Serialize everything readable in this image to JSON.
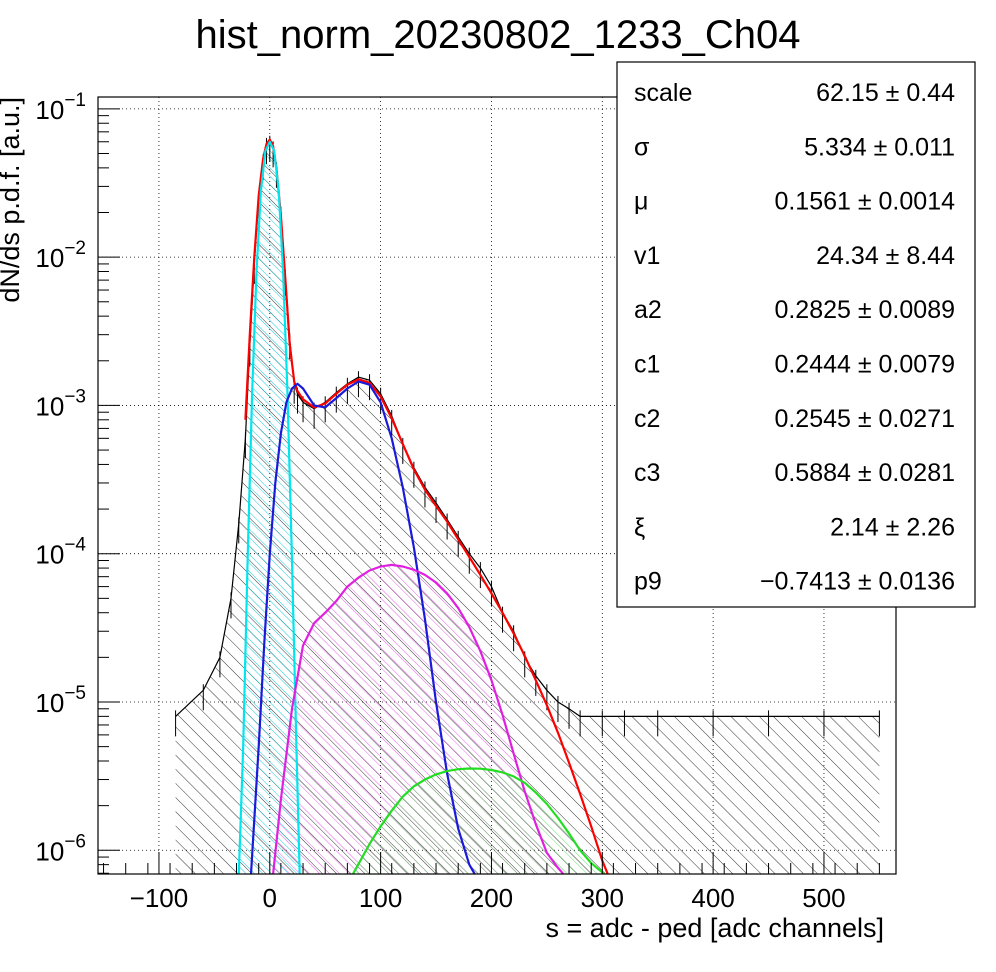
{
  "chart_data": {
    "type": "line",
    "title": "hist_norm_20230802_1233_Ch04",
    "xlabel": "s = adc - ped [adc channels]",
    "ylabel": "dN/ds p.d.f. [a.u.]",
    "xlim": [
      -155,
      565
    ],
    "ylim_log10": [
      -6.16,
      -0.92
    ],
    "y_scale": "log",
    "grid": true,
    "x_ticks": [
      -100,
      0,
      100,
      200,
      300,
      400,
      500
    ],
    "x_tick_labels": [
      "−100",
      "0",
      "100",
      "200",
      "300",
      "400",
      "500"
    ],
    "y_ticks": [
      {
        "mant": "10",
        "exp": "−1",
        "log": -1
      },
      {
        "mant": "10",
        "exp": "−2",
        "log": -2
      },
      {
        "mant": "10",
        "exp": "−3",
        "log": -3
      },
      {
        "mant": "10",
        "exp": "−4",
        "log": -4
      },
      {
        "mant": "10",
        "exp": "−5",
        "log": -5
      },
      {
        "mant": "10",
        "exp": "−6",
        "log": -6
      }
    ],
    "series": [
      {
        "color": "#000000",
        "role": "histogram",
        "x": [
          -85,
          -60,
          -45,
          -35,
          -28,
          -22,
          -18,
          -14,
          -10,
          -6,
          -3,
          0,
          3,
          6,
          10,
          14,
          18,
          22,
          25,
          30,
          40,
          50,
          60,
          70,
          80,
          90,
          100,
          110,
          120,
          130,
          140,
          150,
          160,
          170,
          180,
          190,
          200,
          210,
          220,
          230,
          240,
          250,
          260,
          270,
          280,
          300,
          320,
          350,
          400,
          450,
          500,
          550
        ],
        "y": [
          8e-06,
          1.2e-05,
          2e-05,
          5e-05,
          0.00016,
          0.0006,
          0.0025,
          0.009,
          0.025,
          0.045,
          0.058,
          0.06,
          0.055,
          0.04,
          0.02,
          0.0075,
          0.0028,
          0.0014,
          0.0012,
          0.00105,
          0.00095,
          0.00105,
          0.00122,
          0.0014,
          0.00155,
          0.00148,
          0.0012,
          0.00085,
          0.00055,
          0.00038,
          0.00028,
          0.00022,
          0.00017,
          0.00013,
          0.0001,
          8e-05,
          6e-05,
          4e-05,
          3e-05,
          2e-05,
          1.5e-05,
          1.2e-05,
          1e-05,
          9e-06,
          8e-06,
          8e-06,
          8e-06,
          8e-06,
          8e-06,
          8e-06,
          8e-06,
          8e-06
        ]
      },
      {
        "color": "#ff0000",
        "role": "total fit",
        "x": [
          -22,
          -18,
          -14,
          -10,
          -6,
          -3,
          0,
          3,
          6,
          10,
          14,
          18,
          22,
          25,
          30,
          40,
          50,
          60,
          70,
          80,
          90,
          100,
          110,
          120,
          130,
          140,
          150,
          160,
          170,
          180,
          190,
          200,
          210,
          220,
          230,
          240,
          250,
          260,
          270,
          280,
          290,
          300,
          305
        ],
        "y": [
          0.0008,
          0.003,
          0.01,
          0.026,
          0.046,
          0.058,
          0.062,
          0.056,
          0.04,
          0.019,
          0.0072,
          0.0026,
          0.00145,
          0.00125,
          0.0011,
          0.00097,
          0.00103,
          0.0012,
          0.00138,
          0.0015,
          0.00142,
          0.00115,
          0.00082,
          0.00055,
          0.00037,
          0.00027,
          0.00021,
          0.000165,
          0.000125,
          9.5e-05,
          7.2e-05,
          5.4e-05,
          4e-05,
          2.9e-05,
          2.05e-05,
          1.4e-05,
          9.5e-06,
          6.2e-06,
          3.9e-06,
          2.4e-06,
          1.45e-06,
          8.5e-07,
          6.9e-07
        ]
      },
      {
        "color": "#00e5ee",
        "role": "pedestal component",
        "x": [
          -28,
          -24,
          -20,
          -16,
          -12,
          -8,
          -4,
          0,
          4,
          8,
          12,
          16,
          20,
          24,
          27
        ],
        "y": [
          6.9e-07,
          5e-06,
          9e-05,
          0.0012,
          0.008,
          0.028,
          0.052,
          0.06,
          0.052,
          0.028,
          0.008,
          0.0012,
          9e-05,
          5e-06,
          6.9e-07
        ]
      },
      {
        "color": "#1a1adb",
        "role": "1 p.e. component",
        "x": [
          -17,
          -10,
          -5,
          0,
          5,
          10,
          15,
          20,
          25,
          30,
          40,
          50,
          60,
          70,
          80,
          90,
          100,
          110,
          120,
          130,
          140,
          150,
          160,
          170,
          180,
          185
        ],
        "y": [
          6.9e-07,
          5e-06,
          2.5e-05,
          0.0001,
          0.0003,
          0.00065,
          0.00105,
          0.0013,
          0.0014,
          0.0013,
          0.001,
          0.00097,
          0.00112,
          0.0013,
          0.00145,
          0.00138,
          0.00105,
          0.0006,
          0.00028,
          0.00011,
          3.6e-05,
          1e-05,
          3.3e-06,
          1.4e-06,
          8e-07,
          6.9e-07
        ]
      },
      {
        "color": "#e020e0",
        "role": "2 p.e. component",
        "x": [
          3,
          10,
          20,
          30,
          40,
          50,
          60,
          70,
          80,
          90,
          100,
          110,
          120,
          130,
          140,
          150,
          160,
          170,
          180,
          190,
          200,
          210,
          220,
          230,
          240,
          250,
          260,
          265
        ],
        "y": [
          6.9e-07,
          2.2e-06,
          9e-06,
          2.4e-05,
          3.4e-05,
          4e-05,
          4.8e-05,
          6e-05,
          6.9e-05,
          7.7e-05,
          8.2e-05,
          8.4e-05,
          8.2e-05,
          7.8e-05,
          7.2e-05,
          6.4e-05,
          5.4e-05,
          4.3e-05,
          3.2e-05,
          2.2e-05,
          1.4e-05,
          8.2e-06,
          4.5e-06,
          2.5e-06,
          1.5e-06,
          9.6e-07,
          7.6e-07,
          6.9e-07
        ]
      },
      {
        "color": "#22dd22",
        "role": "3 p.e. component",
        "x": [
          75,
          90,
          100,
          110,
          120,
          130,
          140,
          150,
          160,
          170,
          180,
          190,
          200,
          210,
          220,
          230,
          240,
          250,
          260,
          270,
          280,
          290,
          302
        ],
        "y": [
          6.9e-07,
          1.1e-06,
          1.45e-06,
          1.85e-06,
          2.3e-06,
          2.7e-06,
          3e-06,
          3.25e-06,
          3.42e-06,
          3.52e-06,
          3.56e-06,
          3.55e-06,
          3.48e-06,
          3.35e-06,
          3.15e-06,
          2.85e-06,
          2.45e-06,
          2.05e-06,
          1.65e-06,
          1.3e-06,
          1e-06,
          8.2e-07,
          6.9e-07
        ]
      }
    ]
  },
  "stats": {
    "rows": [
      {
        "name": "scale",
        "value": "62.15 ± 0.44"
      },
      {
        "name": "σ",
        "value": "5.334 ± 0.011"
      },
      {
        "name": "μ",
        "value": "0.1561 ± 0.0014"
      },
      {
        "name": "v1",
        "value": "24.34 ± 8.44"
      },
      {
        "name": "a2",
        "value": "0.2825 ± 0.0089"
      },
      {
        "name": "c1",
        "value": "0.2444 ± 0.0079"
      },
      {
        "name": "c2",
        "value": "0.2545 ± 0.0271"
      },
      {
        "name": "c3",
        "value": "0.5884 ± 0.0281"
      },
      {
        "name": "ξ",
        "value": "2.14 ± 2.26"
      },
      {
        "name": "p9",
        "value": "−0.7413 ± 0.0136"
      }
    ]
  }
}
